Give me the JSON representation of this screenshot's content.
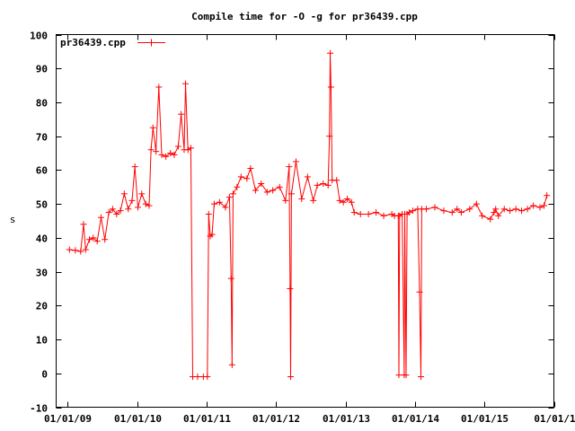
{
  "chart_data": {
    "type": "line",
    "title": "Compile time for -O -g for pr36439.cpp",
    "xlabel": "",
    "ylabel": "s",
    "ylim": [
      -10,
      100
    ],
    "xlim": [
      "2008-11-01",
      "2016-01-01"
    ],
    "yticks": [
      "-10",
      "0",
      "10",
      "20",
      "30",
      "40",
      "50",
      "60",
      "70",
      "80",
      "90",
      "100"
    ],
    "xticks": [
      {
        "date": "2009-01-01",
        "label": "01/01/09"
      },
      {
        "date": "2010-01-01",
        "label": "01/01/10"
      },
      {
        "date": "2011-01-01",
        "label": "01/01/11"
      },
      {
        "date": "2012-01-01",
        "label": "01/01/12"
      },
      {
        "date": "2013-01-01",
        "label": "01/01/13"
      },
      {
        "date": "2014-01-01",
        "label": "01/01/14"
      },
      {
        "date": "2015-01-01",
        "label": "01/01/15"
      },
      {
        "date": "2016-01-01",
        "label": "01/01/1"
      }
    ],
    "grid": false,
    "legend_position": "top-left",
    "marker": "plus",
    "series": [
      {
        "name": "pr36439.cpp",
        "color": "#ff0000",
        "points": [
          [
            "2009-01-10",
            36.5
          ],
          [
            "2009-02-10",
            36.3
          ],
          [
            "2009-03-10",
            36.0
          ],
          [
            "2009-03-25",
            44.0
          ],
          [
            "2009-04-05",
            36.5
          ],
          [
            "2009-04-25",
            39.5
          ],
          [
            "2009-05-15",
            40.0
          ],
          [
            "2009-06-05",
            39.0
          ],
          [
            "2009-06-25",
            46.0
          ],
          [
            "2009-07-15",
            39.5
          ],
          [
            "2009-08-05",
            47.5
          ],
          [
            "2009-08-25",
            48.5
          ],
          [
            "2009-09-15",
            47.0
          ],
          [
            "2009-10-05",
            48.0
          ],
          [
            "2009-10-25",
            53.0
          ],
          [
            "2009-11-15",
            48.5
          ],
          [
            "2009-12-05",
            51.0
          ],
          [
            "2009-12-20",
            61.0
          ],
          [
            "2010-01-05",
            49.0
          ],
          [
            "2010-01-25",
            53.0
          ],
          [
            "2010-02-15",
            50.0
          ],
          [
            "2010-03-05",
            49.5
          ],
          [
            "2010-03-15",
            66.0
          ],
          [
            "2010-03-25",
            72.5
          ],
          [
            "2010-04-10",
            65.5
          ],
          [
            "2010-04-25",
            84.5
          ],
          [
            "2010-05-10",
            64.5
          ],
          [
            "2010-06-01",
            64.0
          ],
          [
            "2010-06-25",
            65.0
          ],
          [
            "2010-07-15",
            64.5
          ],
          [
            "2010-08-05",
            67.0
          ],
          [
            "2010-08-20",
            76.5
          ],
          [
            "2010-09-05",
            66.0
          ],
          [
            "2010-09-12",
            85.5
          ],
          [
            "2010-09-25",
            66.0
          ],
          [
            "2010-10-10",
            66.5
          ],
          [
            "2010-10-20",
            -1.0
          ],
          [
            "2010-11-15",
            -1.0
          ],
          [
            "2010-12-15",
            -1.0
          ],
          [
            "2011-01-05",
            -1.0
          ],
          [
            "2011-01-12",
            47.0
          ],
          [
            "2011-01-20",
            40.5
          ],
          [
            "2011-01-30",
            41.0
          ],
          [
            "2011-02-10",
            50.0
          ],
          [
            "2011-03-10",
            50.5
          ],
          [
            "2011-04-10",
            49.0
          ],
          [
            "2011-05-01",
            52.0
          ],
          [
            "2011-05-10",
            28.0
          ],
          [
            "2011-05-15",
            2.5
          ],
          [
            "2011-05-20",
            53.0
          ],
          [
            "2011-06-10",
            55.0
          ],
          [
            "2011-07-01",
            58.0
          ],
          [
            "2011-08-01",
            57.5
          ],
          [
            "2011-08-20",
            60.5
          ],
          [
            "2011-09-15",
            54.0
          ],
          [
            "2011-10-15",
            56.0
          ],
          [
            "2011-11-15",
            53.5
          ],
          [
            "2011-12-15",
            54.0
          ],
          [
            "2012-01-20",
            55.0
          ],
          [
            "2012-02-20",
            51.0
          ],
          [
            "2012-03-10",
            61.0
          ],
          [
            "2012-03-15",
            25.0
          ],
          [
            "2012-03-18",
            -1.0
          ],
          [
            "2012-03-22",
            53.0
          ],
          [
            "2012-04-15",
            62.5
          ],
          [
            "2012-05-15",
            51.5
          ],
          [
            "2012-06-15",
            58.0
          ],
          [
            "2012-07-15",
            51.0
          ],
          [
            "2012-08-05",
            55.5
          ],
          [
            "2012-09-05",
            56.0
          ],
          [
            "2012-10-01",
            55.5
          ],
          [
            "2012-10-08",
            70.0
          ],
          [
            "2012-10-12",
            94.5
          ],
          [
            "2012-10-16",
            84.5
          ],
          [
            "2012-10-22",
            57.0
          ],
          [
            "2012-11-15",
            57.0
          ],
          [
            "2012-12-01",
            51.0
          ],
          [
            "2012-12-20",
            50.5
          ],
          [
            "2013-01-10",
            51.5
          ],
          [
            "2013-02-01",
            50.5
          ],
          [
            "2013-02-15",
            47.5
          ],
          [
            "2013-03-20",
            47.0
          ],
          [
            "2013-05-01",
            47.0
          ],
          [
            "2013-06-10",
            47.5
          ],
          [
            "2013-07-20",
            46.5
          ],
          [
            "2013-09-01",
            47.0
          ],
          [
            "2013-09-15",
            46.5
          ],
          [
            "2013-10-05",
            46.5
          ],
          [
            "2013-10-08",
            -0.5
          ],
          [
            "2013-10-12",
            46.5
          ],
          [
            "2013-10-25",
            47.0
          ],
          [
            "2013-11-05",
            -0.5
          ],
          [
            "2013-11-08",
            47.0
          ],
          [
            "2013-11-15",
            -0.5
          ],
          [
            "2013-11-20",
            47.0
          ],
          [
            "2013-12-01",
            47.5
          ],
          [
            "2013-12-20",
            48.0
          ],
          [
            "2014-01-15",
            48.5
          ],
          [
            "2014-01-25",
            24.0
          ],
          [
            "2014-02-01",
            -1.0
          ],
          [
            "2014-02-05",
            48.5
          ],
          [
            "2014-03-01",
            48.5
          ],
          [
            "2014-04-15",
            49.0
          ],
          [
            "2014-06-01",
            48.0
          ],
          [
            "2014-07-15",
            47.5
          ],
          [
            "2014-08-10",
            48.5
          ],
          [
            "2014-09-01",
            47.5
          ],
          [
            "2014-10-15",
            48.5
          ],
          [
            "2014-11-20",
            50.0
          ],
          [
            "2014-12-20",
            46.5
          ],
          [
            "2015-02-01",
            45.5
          ],
          [
            "2015-02-20",
            47.5
          ],
          [
            "2015-03-01",
            48.5
          ],
          [
            "2015-03-15",
            46.5
          ],
          [
            "2015-04-15",
            48.5
          ],
          [
            "2015-05-15",
            48.0
          ],
          [
            "2015-06-15",
            48.5
          ],
          [
            "2015-07-15",
            48.0
          ],
          [
            "2015-08-15",
            48.5
          ],
          [
            "2015-09-15",
            49.5
          ],
          [
            "2015-10-20",
            49.0
          ],
          [
            "2015-11-10",
            49.5
          ],
          [
            "2015-11-25",
            52.5
          ]
        ]
      }
    ]
  }
}
